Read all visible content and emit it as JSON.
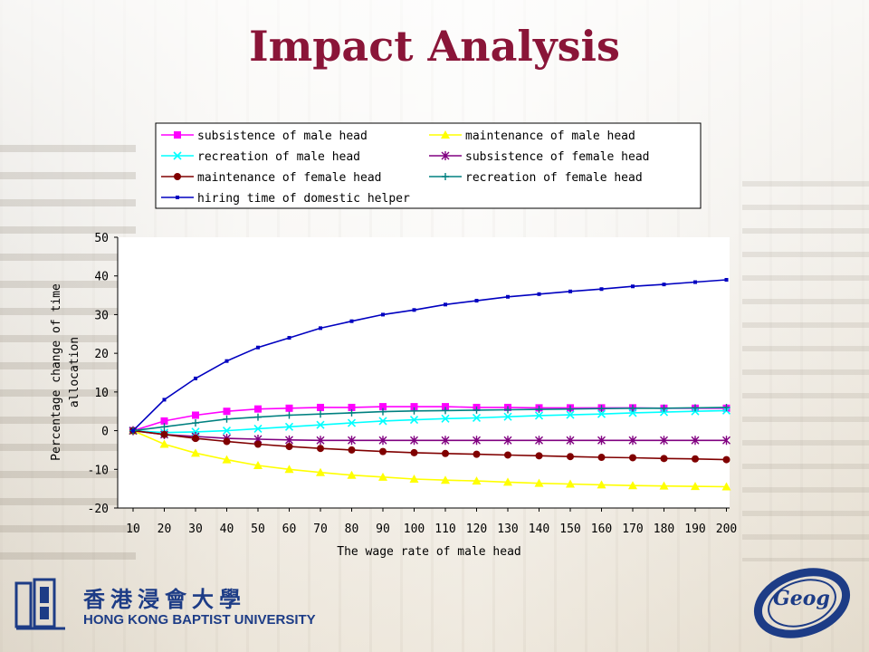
{
  "slide": {
    "title": "Impact Analysis",
    "footer": {
      "university_cn": "香港浸會大學",
      "university_en": "HONG KONG BAPTIST UNIVERSITY",
      "dept_logo": "Geog"
    }
  },
  "chart_data": {
    "type": "line",
    "title": "",
    "xlabel": "The wage rate of male head",
    "ylabel": "Percentage change of time allocation",
    "ylabel_lines": [
      "Percentage change of time",
      "allocation"
    ],
    "ylim": [
      -20,
      50
    ],
    "yticks": [
      50,
      40,
      30,
      20,
      10,
      0,
      -10,
      -20
    ],
    "categories": [
      "10",
      "20",
      "30",
      "40",
      "50",
      "60",
      "70",
      "80",
      "90",
      "100",
      "110",
      "120",
      "130",
      "140",
      "150",
      "160",
      "170",
      "180",
      "190",
      "200"
    ],
    "grid": false,
    "legend_position": "top",
    "series": [
      {
        "name": "subsistence of male head",
        "color": "#ff00ff",
        "marker": "square",
        "values": [
          0,
          2.5,
          4,
          5,
          5.6,
          5.8,
          6,
          6,
          6.2,
          6.2,
          6.2,
          6,
          6,
          5.9,
          5.9,
          5.9,
          5.9,
          5.8,
          5.8,
          5.8
        ]
      },
      {
        "name": "maintenance of male head",
        "color": "#ffff00",
        "marker": "triangle",
        "values": [
          0,
          -3.5,
          -5.8,
          -7.5,
          -9,
          -10,
          -10.8,
          -11.5,
          -12,
          -12.5,
          -12.8,
          -13,
          -13.3,
          -13.6,
          -13.8,
          -14,
          -14.2,
          -14.3,
          -14.4,
          -14.5
        ]
      },
      {
        "name": "recreation of male head",
        "color": "#00ffff",
        "marker": "x",
        "values": [
          0,
          -0.5,
          -0.3,
          0,
          0.5,
          1,
          1.5,
          2,
          2.5,
          2.8,
          3.1,
          3.3,
          3.6,
          3.9,
          4.1,
          4.3,
          4.6,
          4.8,
          5,
          5.2
        ]
      },
      {
        "name": "subsistence of female head",
        "color": "#800080",
        "marker": "star",
        "values": [
          0,
          -1,
          -1.5,
          -2,
          -2.2,
          -2.4,
          -2.5,
          -2.5,
          -2.5,
          -2.5,
          -2.5,
          -2.5,
          -2.5,
          -2.5,
          -2.5,
          -2.5,
          -2.5,
          -2.5,
          -2.5,
          -2.5
        ]
      },
      {
        "name": "maintenance of female head",
        "color": "#800000",
        "marker": "circle",
        "values": [
          0,
          -1,
          -2,
          -2.8,
          -3.5,
          -4.1,
          -4.6,
          -5,
          -5.4,
          -5.7,
          -5.9,
          -6.1,
          -6.3,
          -6.5,
          -6.7,
          -6.9,
          -7,
          -7.2,
          -7.3,
          -7.5
        ]
      },
      {
        "name": "recreation of female head",
        "color": "#008080",
        "marker": "plus",
        "values": [
          0,
          1,
          2,
          3,
          3.5,
          4,
          4.3,
          4.6,
          4.9,
          5.1,
          5.2,
          5.3,
          5.4,
          5.5,
          5.6,
          5.7,
          5.8,
          5.8,
          5.9,
          6
        ]
      },
      {
        "name": "hiring time of domestic helper",
        "color": "#0000c0",
        "marker": "dot",
        "values": [
          0,
          8,
          13.5,
          18,
          21.5,
          24,
          26.5,
          28.3,
          30,
          31.2,
          32.6,
          33.6,
          34.6,
          35.3,
          36,
          36.6,
          37.3,
          37.8,
          38.4,
          39
        ]
      }
    ]
  }
}
